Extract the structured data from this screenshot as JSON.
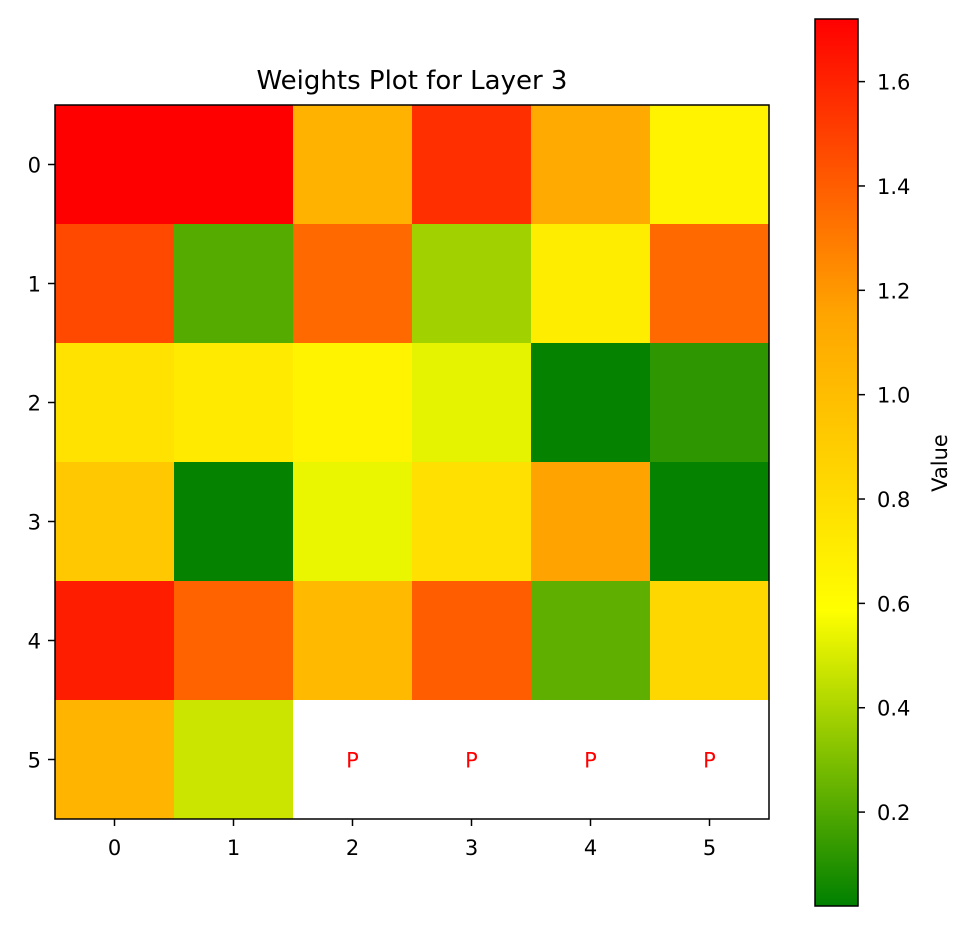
{
  "chart_data": {
    "type": "heatmap",
    "title": "Weights Plot for Layer 3",
    "x_ticks": [
      "0",
      "1",
      "2",
      "3",
      "4",
      "5"
    ],
    "y_ticks": [
      "0",
      "1",
      "2",
      "3",
      "4",
      "5"
    ],
    "values": [
      [
        1.72,
        1.72,
        1.07,
        1.56,
        1.12,
        0.66
      ],
      [
        1.47,
        0.21,
        1.36,
        0.38,
        0.7,
        1.36
      ],
      [
        0.77,
        0.72,
        0.66,
        0.53,
        0.03,
        0.12
      ],
      [
        0.93,
        0.03,
        0.54,
        0.78,
        1.16,
        0.03
      ],
      [
        1.62,
        1.38,
        1.02,
        1.4,
        0.23,
        0.84
      ],
      [
        1.05,
        0.47,
        null,
        null,
        null,
        null
      ]
    ],
    "pad_marker": "P",
    "colorbar": {
      "label": "Value",
      "range": [
        0.02,
        1.72
      ],
      "ticks": [
        "0.2",
        "0.4",
        "0.6",
        "0.8",
        "1.0",
        "1.2",
        "1.4",
        "1.6"
      ],
      "tick_values": [
        0.2,
        0.4,
        0.6,
        0.8,
        1.0,
        1.2,
        1.4,
        1.6
      ],
      "colormap": [
        "#008000",
        "#ffff00",
        "#ffa500",
        "#ff0000"
      ]
    }
  }
}
